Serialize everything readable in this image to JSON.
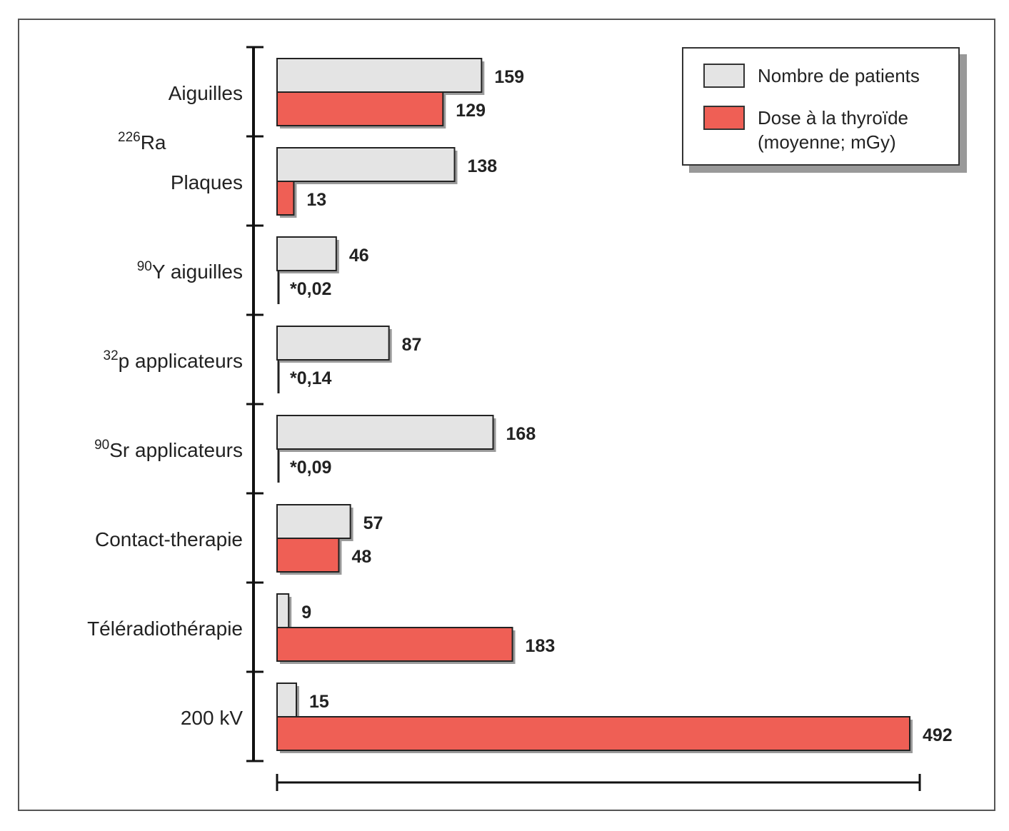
{
  "chart_data": {
    "type": "bar",
    "orientation": "horizontal",
    "groups": [
      {
        "group_label": "226Ra",
        "group_label_sup": "226",
        "group_label_base": "Ra"
      }
    ],
    "categories": [
      {
        "label": "Aiguilles",
        "sup": "",
        "group": "226Ra"
      },
      {
        "label": "Plaques",
        "sup": "",
        "group": "226Ra"
      },
      {
        "label": "Y aiguilles",
        "sup": "90",
        "group": ""
      },
      {
        "label": "p applicateurs",
        "sup": "32",
        "group": ""
      },
      {
        "label": "Sr applicateurs",
        "sup": "90",
        "group": ""
      },
      {
        "label": "Contact-therapie",
        "sup": "",
        "group": ""
      },
      {
        "label": "Téléradiothérapie",
        "sup": "",
        "group": ""
      },
      {
        "label": "200 kV",
        "sup": "",
        "group": ""
      }
    ],
    "series": [
      {
        "name": "Nombre de patients",
        "color": "#e4e4e4",
        "values": [
          159,
          138,
          46,
          87,
          168,
          57,
          9,
          15
        ],
        "labels": [
          "159",
          "138",
          "46",
          "87",
          "168",
          "57",
          "9",
          "15"
        ]
      },
      {
        "name": "Dose à la thyroïde (moyenne; mGy)",
        "color": "#ef5f55",
        "values": [
          129,
          13,
          0.02,
          0.14,
          0.09,
          48,
          183,
          492
        ],
        "labels": [
          "129",
          "13",
          "*0,02",
          "*0,14",
          "*0,09",
          "48",
          "183",
          "492"
        ]
      }
    ],
    "xlim": [
      0,
      500
    ],
    "title": "",
    "xlabel": "",
    "ylabel": ""
  },
  "legend": {
    "entries": [
      {
        "label": "Nombre de patients",
        "color": "#e4e4e4"
      },
      {
        "label": "Dose à la thyroïde (moyenne; mGy)",
        "color": "#ef5f55"
      }
    ]
  }
}
